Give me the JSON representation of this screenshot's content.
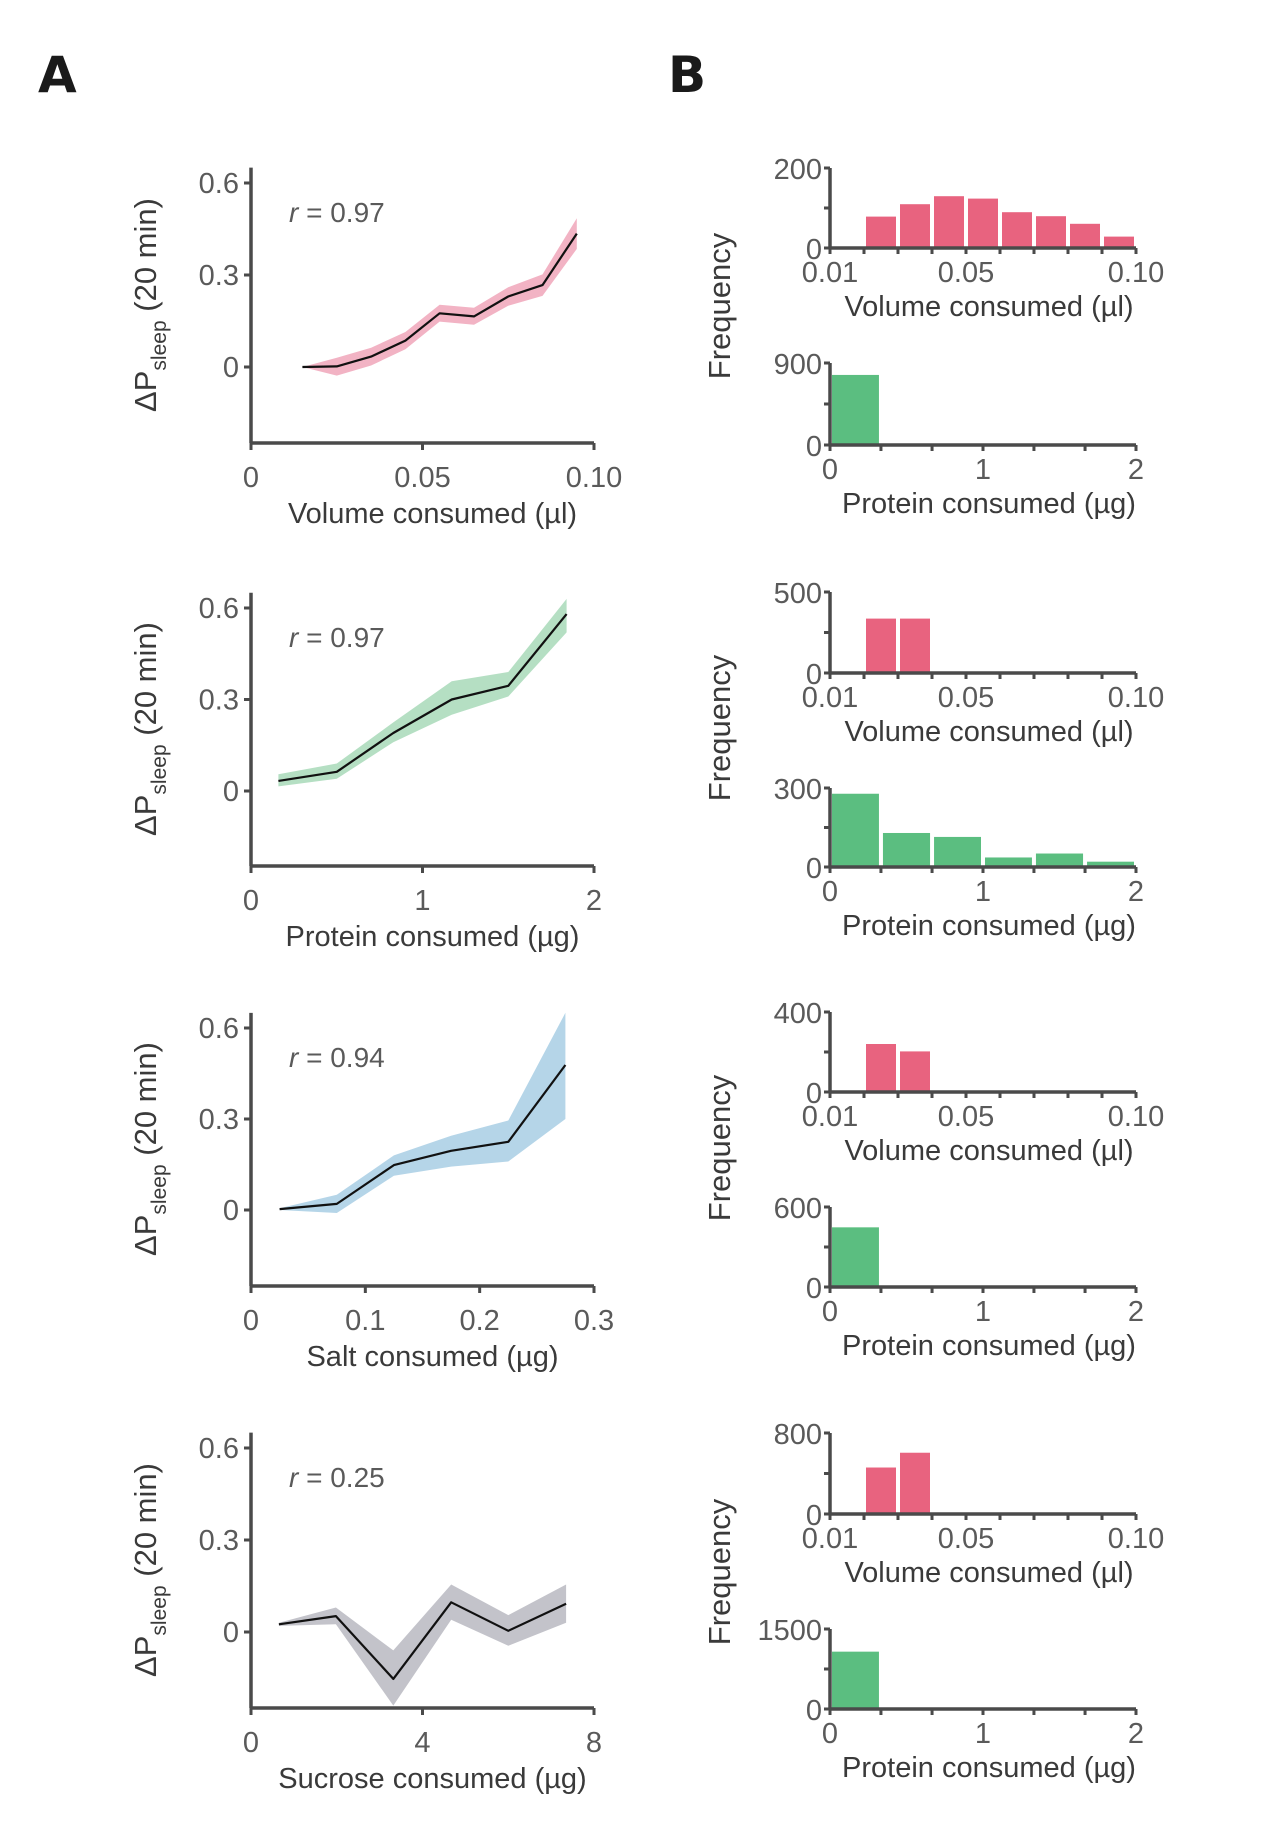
{
  "panels": {
    "A": {
      "letter": "A"
    },
    "B": {
      "letter": "B"
    }
  },
  "colors": {
    "volume_bar": "#E8637F",
    "protein_bar": "#5BBE80",
    "band_yeast": "#F2B3C4",
    "band_protein": "#B5DFC3",
    "band_salt": "#B5D5E8",
    "band_sucrose": "#C3C3CA",
    "mean_line": "#111111"
  },
  "chart_data": [
    {
      "id": "A1",
      "type": "line",
      "panel": "A",
      "ylabel": "ΔP",
      "ylabel_sub": "sleep",
      "ylabel_suffix": "(20 min)",
      "xlabel": "Volume consumed (µl)",
      "annotation_r": "r",
      "annotation_value": "= 0.97",
      "xlim": [
        0,
        0.1
      ],
      "ylim": [
        -0.25,
        0.65
      ],
      "xticks": [
        0,
        0.05,
        0.1
      ],
      "xtick_labels": [
        "0",
        "0.05",
        "0.10"
      ],
      "yticks": [
        0,
        0.3,
        0.6
      ],
      "ytick_labels": [
        "0",
        "0.3",
        "0.6"
      ],
      "band_color_key": "band_yeast",
      "x": [
        0.015,
        0.025,
        0.035,
        0.045,
        0.055,
        0.065,
        0.075,
        0.085,
        0.095
      ],
      "y": [
        0.0,
        0.002,
        0.034,
        0.086,
        0.175,
        0.165,
        0.23,
        0.267,
        0.435
      ],
      "y_lower": [
        0.0,
        -0.028,
        0.005,
        0.058,
        0.148,
        0.138,
        0.2,
        0.232,
        0.385
      ],
      "y_upper": [
        0.0,
        0.03,
        0.063,
        0.114,
        0.203,
        0.193,
        0.26,
        0.302,
        0.485
      ]
    },
    {
      "id": "A2",
      "type": "line",
      "panel": "A",
      "ylabel": "ΔP",
      "ylabel_sub": "sleep",
      "ylabel_suffix": "(20 min)",
      "xlabel": "Protein consumed (µg)",
      "annotation_r": "r",
      "annotation_value": "= 0.97",
      "xlim": [
        0,
        2
      ],
      "ylim": [
        -0.25,
        0.65
      ],
      "xticks": [
        0,
        1,
        2
      ],
      "xtick_labels": [
        "0",
        "1",
        "2"
      ],
      "yticks": [
        0,
        0.3,
        0.6
      ],
      "ytick_labels": [
        "0",
        "0.3",
        "0.6"
      ],
      "band_color_key": "band_protein",
      "x": [
        0.16,
        0.5,
        0.83,
        1.17,
        1.5,
        1.84
      ],
      "y": [
        0.033,
        0.063,
        0.19,
        0.3,
        0.345,
        0.58
      ],
      "y_lower": [
        0.015,
        0.04,
        0.16,
        0.25,
        0.31,
        0.52
      ],
      "y_upper": [
        0.055,
        0.09,
        0.225,
        0.36,
        0.39,
        0.63
      ]
    },
    {
      "id": "A3",
      "type": "line",
      "panel": "A",
      "ylabel": "ΔP",
      "ylabel_sub": "sleep",
      "ylabel_suffix": "(20 min)",
      "xlabel": "Salt consumed (µg)",
      "annotation_r": "r",
      "annotation_value": "= 0.94",
      "xlim": [
        0,
        0.3
      ],
      "ylim": [
        -0.25,
        0.65
      ],
      "xticks": [
        0,
        0.1,
        0.2,
        0.3
      ],
      "xtick_labels": [
        "0",
        "0.1",
        "0.2",
        "0.3"
      ],
      "yticks": [
        0,
        0.3,
        0.6
      ],
      "ytick_labels": [
        "0",
        "0.3",
        "0.6"
      ],
      "band_color_key": "band_salt",
      "x": [
        0.025,
        0.075,
        0.125,
        0.175,
        0.225,
        0.275
      ],
      "y": [
        0.003,
        0.02,
        0.148,
        0.195,
        0.225,
        0.478
      ],
      "y_lower": [
        0.0,
        -0.01,
        0.113,
        0.143,
        0.16,
        0.3
      ],
      "y_upper": [
        0.006,
        0.05,
        0.18,
        0.245,
        0.295,
        0.65
      ]
    },
    {
      "id": "A4",
      "type": "line",
      "panel": "A",
      "ylabel": "ΔP",
      "ylabel_sub": "sleep",
      "ylabel_suffix": "(20 min)",
      "xlabel": "Sucrose consumed (µg)",
      "annotation_r": "r",
      "annotation_value": "= 0.25",
      "xlim": [
        0,
        8
      ],
      "ylim": [
        -0.25,
        0.65
      ],
      "xticks": [
        0,
        4,
        8
      ],
      "xtick_labels": [
        "0",
        "4",
        "8"
      ],
      "yticks": [
        0,
        0.3,
        0.6
      ],
      "ytick_labels": [
        "0",
        "0.3",
        "0.6"
      ],
      "band_color_key": "band_sucrose",
      "x": [
        0.65,
        1.98,
        3.32,
        4.67,
        6.0,
        7.35
      ],
      "y": [
        0.025,
        0.052,
        -0.153,
        0.097,
        0.004,
        0.092
      ],
      "y_lower": [
        0.02,
        0.025,
        -0.24,
        0.04,
        -0.045,
        0.03
      ],
      "y_upper": [
        0.03,
        0.08,
        -0.06,
        0.155,
        0.055,
        0.155
      ]
    },
    {
      "id": "B1a",
      "type": "bar",
      "panel": "B",
      "group": 1,
      "xlabel": "Volume consumed (µl)",
      "ylabel": "Frequency",
      "xlim": [
        0.01,
        0.1
      ],
      "xtick_labels": [
        "0.01",
        "0.05",
        "0.10"
      ],
      "xticks": [
        0.01,
        0.05,
        0.1
      ],
      "ylim": [
        0,
        200
      ],
      "ytick_labels": [
        "0",
        "200"
      ],
      "yticks": [
        0,
        200
      ],
      "bin_edges": [
        0.01,
        0.02,
        0.03,
        0.04,
        0.05,
        0.06,
        0.07,
        0.08,
        0.09,
        0.1
      ],
      "values": [
        0,
        81,
        112,
        132,
        126,
        92,
        82,
        63,
        31
      ],
      "color_key": "volume_bar"
    },
    {
      "id": "B1b",
      "type": "bar",
      "panel": "B",
      "group": 1,
      "xlabel": "Protein consumed (µg)",
      "ylabel": "Frequency",
      "xlim": [
        0,
        2
      ],
      "xtick_labels": [
        "0",
        "1",
        "2"
      ],
      "xticks": [
        0,
        1,
        2
      ],
      "ylim": [
        0,
        900
      ],
      "ytick_labels": [
        "0",
        "900"
      ],
      "yticks": [
        0,
        900
      ],
      "bin_edges": [
        0,
        0.333,
        0.667,
        1.0,
        1.333,
        1.667,
        2.0
      ],
      "values": [
        780,
        3,
        2,
        1,
        1,
        1
      ],
      "color_key": "protein_bar"
    },
    {
      "id": "B2a",
      "type": "bar",
      "panel": "B",
      "group": 2,
      "xlabel": "Volume consumed (µl)",
      "ylabel": "Frequency",
      "xlim": [
        0.01,
        0.1
      ],
      "xtick_labels": [
        "0.01",
        "0.05",
        "0.10"
      ],
      "xticks": [
        0.01,
        0.05,
        0.1
      ],
      "ylim": [
        0,
        500
      ],
      "ytick_labels": [
        "0",
        "500"
      ],
      "yticks": [
        0,
        500
      ],
      "bin_edges": [
        0.01,
        0.02,
        0.03,
        0.04,
        0.05,
        0.06,
        0.07,
        0.08,
        0.09,
        0.1
      ],
      "values": [
        0,
        342,
        342,
        0,
        0,
        0,
        0,
        0,
        0
      ],
      "color_key": "volume_bar"
    },
    {
      "id": "B2b",
      "type": "bar",
      "panel": "B",
      "group": 2,
      "xlabel": "Protein consumed (µg)",
      "ylabel": "Frequency",
      "xlim": [
        0,
        2
      ],
      "xtick_labels": [
        "0",
        "1",
        "2"
      ],
      "xticks": [
        0,
        1,
        2
      ],
      "ylim": [
        0,
        300
      ],
      "ytick_labels": [
        "0",
        "300"
      ],
      "yticks": [
        0,
        300
      ],
      "bin_edges": [
        0,
        0.333,
        0.667,
        1.0,
        1.333,
        1.667,
        2.0
      ],
      "values": [
        282,
        133,
        118,
        40,
        55,
        24
      ],
      "color_key": "protein_bar"
    },
    {
      "id": "B3a",
      "type": "bar",
      "panel": "B",
      "group": 3,
      "xlabel": "Volume consumed (µl)",
      "ylabel": "Frequency",
      "xlim": [
        0.01,
        0.1
      ],
      "xtick_labels": [
        "0.01",
        "0.05",
        "0.10"
      ],
      "xticks": [
        0.01,
        0.05,
        0.1
      ],
      "ylim": [
        0,
        400
      ],
      "ytick_labels": [
        "0",
        "400"
      ],
      "yticks": [
        0,
        400
      ],
      "bin_edges": [
        0.01,
        0.02,
        0.03,
        0.04,
        0.05,
        0.06,
        0.07,
        0.08,
        0.09,
        0.1
      ],
      "values": [
        0,
        245,
        208,
        0,
        0,
        0,
        0,
        0,
        0
      ],
      "color_key": "volume_bar"
    },
    {
      "id": "B3b",
      "type": "bar",
      "panel": "B",
      "group": 3,
      "xlabel": "Protein consumed (µg)",
      "ylabel": "Frequency",
      "xlim": [
        0,
        2
      ],
      "xtick_labels": [
        "0",
        "1",
        "2"
      ],
      "xticks": [
        0,
        1,
        2
      ],
      "ylim": [
        0,
        600
      ],
      "ytick_labels": [
        "0",
        "600"
      ],
      "yticks": [
        0,
        600
      ],
      "bin_edges": [
        0,
        0.333,
        0.667,
        1.0,
        1.333,
        1.667,
        2.0
      ],
      "values": [
        455,
        0,
        0,
        0,
        0,
        0
      ],
      "color_key": "protein_bar"
    },
    {
      "id": "B4a",
      "type": "bar",
      "panel": "B",
      "group": 4,
      "xlabel": "Volume consumed (µl)",
      "ylabel": "Frequency",
      "xlim": [
        0.01,
        0.1
      ],
      "xtick_labels": [
        "0.01",
        "0.05",
        "0.10"
      ],
      "xticks": [
        0.01,
        0.05,
        0.1
      ],
      "ylim": [
        0,
        800
      ],
      "ytick_labels": [
        "0",
        "800"
      ],
      "yticks": [
        0,
        800
      ],
      "bin_edges": [
        0.01,
        0.02,
        0.03,
        0.04,
        0.05,
        0.06,
        0.07,
        0.08,
        0.09,
        0.1
      ],
      "values": [
        0,
        469,
        615,
        0,
        0,
        0,
        0,
        0,
        0
      ],
      "color_key": "volume_bar"
    },
    {
      "id": "B4b",
      "type": "bar",
      "panel": "B",
      "group": 4,
      "xlabel": "Protein consumed (µg)",
      "ylabel": "Frequency",
      "xlim": [
        0,
        2
      ],
      "xtick_labels": [
        "0",
        "1",
        "2"
      ],
      "xticks": [
        0,
        1,
        2
      ],
      "ylim": [
        0,
        1500
      ],
      "ytick_labels": [
        "0",
        "1500"
      ],
      "yticks": [
        0,
        1500
      ],
      "bin_edges": [
        0,
        0.333,
        0.667,
        1.0,
        1.333,
        1.667,
        2.0
      ],
      "values": [
        1094,
        0,
        0,
        0,
        0,
        0
      ],
      "color_key": "protein_bar"
    }
  ]
}
